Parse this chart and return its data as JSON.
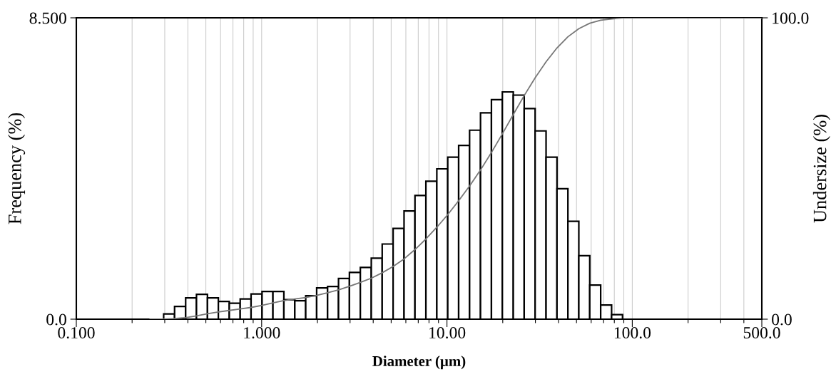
{
  "chart_data": {
    "type": "histogram",
    "xlabel": "Diameter (µm)",
    "ylabel": "Frequency (%)",
    "y2label": "Undersize (%)",
    "log": "x",
    "grid": "x",
    "xlim": [
      0.1,
      500
    ],
    "xticks": [
      {
        "value": 0.1,
        "label": "0.100"
      },
      {
        "value": 0.2,
        "label": null
      },
      {
        "value": 0.3,
        "label": null
      },
      {
        "value": 0.4,
        "label": null
      },
      {
        "value": 0.5,
        "label": null
      },
      {
        "value": 0.6,
        "label": null
      },
      {
        "value": 0.7,
        "label": null
      },
      {
        "value": 0.8,
        "label": null
      },
      {
        "value": 0.9,
        "label": null
      },
      {
        "value": 1,
        "label": "1.000"
      },
      {
        "value": 2,
        "label": null
      },
      {
        "value": 3,
        "label": null
      },
      {
        "value": 4,
        "label": null
      },
      {
        "value": 5,
        "label": null
      },
      {
        "value": 6,
        "label": null
      },
      {
        "value": 7,
        "label": null
      },
      {
        "value": 8,
        "label": null
      },
      {
        "value": 9,
        "label": null
      },
      {
        "value": 10,
        "label": "10.00"
      },
      {
        "value": 20,
        "label": null
      },
      {
        "value": 30,
        "label": null
      },
      {
        "value": 40,
        "label": null
      },
      {
        "value": 50,
        "label": null
      },
      {
        "value": 60,
        "label": null
      },
      {
        "value": 70,
        "label": null
      },
      {
        "value": 80,
        "label": null
      },
      {
        "value": 90,
        "label": null
      },
      {
        "value": 100,
        "label": "100.0"
      },
      {
        "value": 200,
        "label": null
      },
      {
        "value": 300,
        "label": null
      },
      {
        "value": 400,
        "label": null
      },
      {
        "value": 500,
        "label": "500.0"
      }
    ],
    "ylim": [
      0,
      8.5
    ],
    "yticks": [
      {
        "value": 0,
        "label": "0.0"
      },
      {
        "value": 8.5,
        "label": "8.500"
      }
    ],
    "y2lim": [
      0,
      100
    ],
    "y2ticks": [
      {
        "value": 0,
        "label": "0.0"
      },
      {
        "value": 100,
        "label": "100.0"
      }
    ],
    "series": [
      {
        "color": "#ffffff",
        "bins": [
          0.296,
          0.339,
          0.389,
          0.445,
          0.51,
          0.584,
          0.669,
          0.766,
          0.877,
          1.005,
          1.151,
          1.318,
          1.51,
          1.729,
          1.981,
          2.269,
          2.599,
          2.976,
          3.409,
          3.905,
          4.472,
          5.122,
          5.867,
          6.72,
          7.697,
          8.816,
          10.097,
          11.565,
          13.246,
          15.172,
          17.377,
          19.904,
          22.797,
          26.111,
          29.907,
          34.255,
          39.234,
          44.938,
          51.471,
          58.953,
          67.523,
          77.339,
          88.583
        ],
        "values": [
          0.15,
          0.36,
          0.6,
          0.7,
          0.6,
          0.5,
          0.45,
          0.57,
          0.71,
          0.78,
          0.78,
          0.55,
          0.52,
          0.66,
          0.88,
          0.92,
          1.15,
          1.32,
          1.46,
          1.72,
          2.12,
          2.56,
          3.05,
          3.49,
          3.89,
          4.24,
          4.57,
          4.9,
          5.33,
          5.82,
          6.19,
          6.41,
          6.32,
          5.94,
          5.31,
          4.57,
          3.68,
          2.76,
          1.79,
          0.96,
          0.4,
          0.13
        ]
      },
      {
        "type": "line",
        "axis": "y2",
        "color": "#777777",
        "x": [
          0.25,
          0.296,
          0.339,
          0.389,
          0.445,
          0.51,
          0.584,
          0.669,
          0.766,
          0.877,
          1.005,
          1.151,
          1.318,
          1.51,
          1.729,
          1.981,
          2.269,
          2.599,
          2.976,
          3.409,
          3.905,
          4.472,
          5.122,
          5.867,
          6.72,
          7.697,
          8.816,
          10.097,
          11.565,
          13.246,
          15.172,
          17.377,
          19.904,
          22.797,
          26.111,
          29.907,
          34.255,
          39.234,
          44.938,
          51.471,
          58.953,
          67.523,
          77.339,
          88.583,
          500
        ],
        "values": [
          0,
          0,
          0.2,
          0.5,
          1.1,
          1.8,
          2.4,
          2.9,
          3.4,
          3.9,
          4.6,
          5.4,
          6.2,
          6.7,
          7.2,
          7.9,
          8.8,
          9.7,
          10.9,
          12.2,
          13.6,
          15.4,
          17.5,
          20.0,
          23.1,
          26.6,
          30.5,
          34.7,
          39.3,
          44.2,
          49.5,
          55.3,
          61.5,
          67.9,
          74.2,
          80.1,
          85.4,
          90.0,
          93.7,
          96.4,
          98.2,
          99.2,
          99.6,
          100,
          100
        ]
      }
    ]
  }
}
